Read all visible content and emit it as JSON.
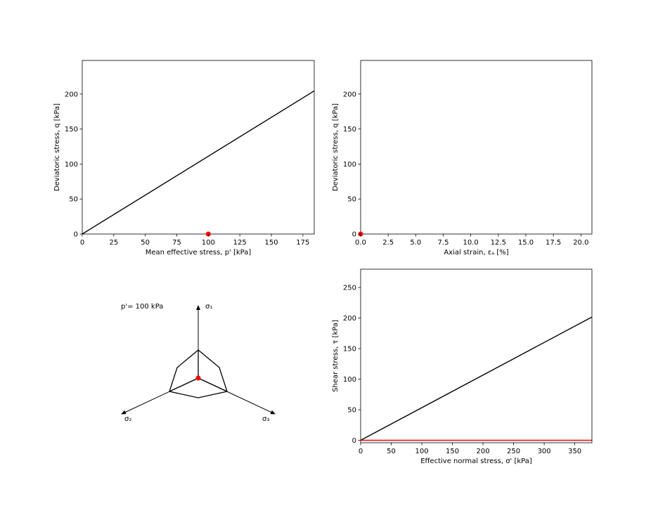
{
  "chart_data": [
    {
      "type": "line",
      "xlabel": "Mean effective stress, p' [kPa]",
      "ylabel": "Deviatoric stress, q [kPa]",
      "xlim": [
        0,
        184
      ],
      "ylim": [
        0,
        248
      ],
      "xticks": [
        "0",
        "25",
        "50",
        "75",
        "100",
        "125",
        "150",
        "175"
      ],
      "yticks": [
        "0",
        "50",
        "100",
        "150",
        "200"
      ],
      "grid": false,
      "series": [
        {
          "color": "#000000",
          "x": [
            0,
            184
          ],
          "y": [
            0,
            204.5
          ]
        }
      ],
      "points": [
        {
          "color": "#ff0000",
          "x": 100,
          "y": 0
        }
      ]
    },
    {
      "type": "line",
      "xlabel": "Axial strain, εₐ [%]",
      "ylabel": "Deviatoric stress, q [kPa]",
      "xlim": [
        0,
        21
      ],
      "ylim": [
        0,
        248
      ],
      "xticks": [
        "0.0",
        "2.5",
        "5.0",
        "7.5",
        "10.0",
        "12.5",
        "15.0",
        "17.5",
        "20.0"
      ],
      "yticks": [
        "0",
        "50",
        "100",
        "150",
        "200"
      ],
      "grid": false,
      "series": [],
      "points": [
        {
          "color": "#ff0000",
          "x": 0,
          "y": 0
        }
      ]
    },
    {
      "type": "line",
      "xlabel": "Effective normal stress, σ' [kPa]",
      "ylabel": "Shear stress, τ [kPa]",
      "xlim": [
        0,
        378
      ],
      "ylim": [
        -4,
        280
      ],
      "xticks": [
        "0",
        "50",
        "100",
        "150",
        "200",
        "250",
        "300",
        "350"
      ],
      "yticks": [
        "0",
        "50",
        "100",
        "150",
        "200",
        "250"
      ],
      "grid": false,
      "series": [
        {
          "color": "#000000",
          "x": [
            0,
            378
          ],
          "y": [
            0,
            201.7
          ]
        },
        {
          "color": "#ff0000",
          "x": [
            0,
            378
          ],
          "y": [
            0,
            0
          ]
        }
      ],
      "points": []
    },
    {
      "type": "diagram",
      "pressure_label": "p'= 100 kPa",
      "axis_labels": [
        "σ₁",
        "σ₂",
        "σ₃"
      ],
      "point_color": "#ff0000"
    }
  ]
}
